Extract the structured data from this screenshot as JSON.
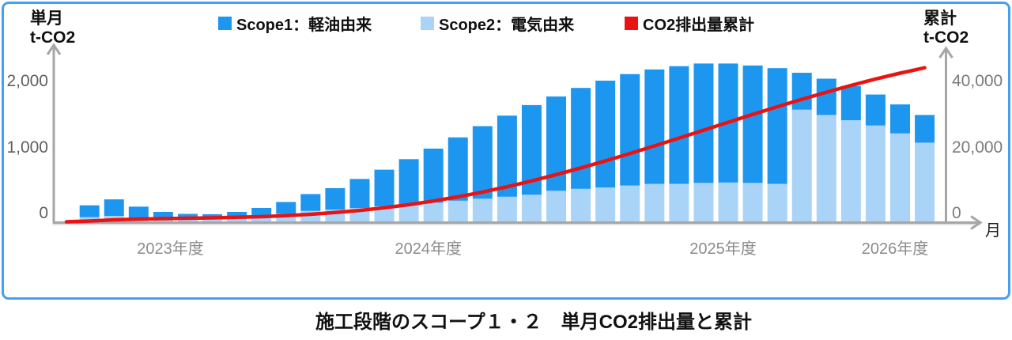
{
  "title": "施工段階のスコープ１・２　単月CO2排出量と累計",
  "axis_corner_titles": {
    "left_line1": "単月",
    "left_line2": "t-CO2",
    "right_line1": "累計",
    "right_line2": "t-CO2"
  },
  "legend": [
    {
      "label": "Scope1：軽油由来",
      "color": "#1D96F0",
      "marker": "square"
    },
    {
      "label": "Scope2：電気由来",
      "color": "#A9D4F8",
      "marker": "square"
    },
    {
      "label": "CO2排出量累計",
      "color": "#EA1212",
      "marker": "square"
    }
  ],
  "x_axis_unit": "月",
  "colors": {
    "scope1": "#1D96F0",
    "scope2": "#A9D4F8",
    "cumulative_line": "#EA1212",
    "frame": "#42A0F5",
    "axis": "#A6A6A6"
  },
  "chart_data": {
    "type": "bar",
    "subtype": "stacked-bars-with-cumulative-line",
    "months_count": 35,
    "x_groups": [
      {
        "label": "2023年度",
        "months": 9
      },
      {
        "label": "2024年度",
        "months": 12
      },
      {
        "label": "2025年度",
        "months": 12
      },
      {
        "label": "2026年度",
        "months": 2
      }
    ],
    "bar_series": [
      {
        "name": "Scope1：軽油由来",
        "color": "#1D96F0",
        "axis": "left",
        "values": [
          180,
          250,
          170,
          110,
          85,
          80,
          90,
          120,
          180,
          255,
          325,
          440,
          555,
          690,
          820,
          960,
          1100,
          1230,
          1360,
          1430,
          1530,
          1620,
          1690,
          1735,
          1785,
          1810,
          1805,
          1780,
          1755,
          560,
          550,
          520,
          470,
          440,
          420
        ]
      },
      {
        "name": "Scope2：電気由来",
        "color": "#A9D4F8",
        "axis": "left",
        "values": [
          70,
          90,
          60,
          40,
          35,
          35,
          60,
          90,
          120,
          165,
          185,
          210,
          235,
          260,
          290,
          320,
          350,
          380,
          410,
          470,
          500,
          520,
          550,
          575,
          575,
          590,
          595,
          590,
          575,
          1700,
          1620,
          1540,
          1460,
          1340,
          1200
        ]
      }
    ],
    "line_series": {
      "name": "CO2排出量累計",
      "color": "#EA1212",
      "axis": "right",
      "values": [
        250,
        590,
        820,
        970,
        1090,
        1205,
        1355,
        1565,
        1865,
        2285,
        2795,
        3445,
        4235,
        5185,
        6295,
        7575,
        9025,
        10635,
        12405,
        14305,
        16335,
        18475,
        20715,
        23025,
        25385,
        27785,
        30185,
        32555,
        34885,
        37145,
        39315,
        41375,
        43305,
        45085,
        46705
      ]
    },
    "left_axis": {
      "title": "単月 t-CO2",
      "ticks": [
        {
          "value": 0,
          "label": "0"
        },
        {
          "value": 1000,
          "label": "1,000"
        },
        {
          "value": 2000,
          "label": "2,000"
        }
      ],
      "range": [
        0,
        2650
      ]
    },
    "right_axis": {
      "title": "累計 t-CO2",
      "ticks": [
        {
          "value": 0,
          "label": "0"
        },
        {
          "value": 20000,
          "label": "20,000"
        },
        {
          "value": 40000,
          "label": "40,000"
        }
      ],
      "range": [
        0,
        53000
      ]
    },
    "grid": false,
    "legend_position": "top"
  }
}
